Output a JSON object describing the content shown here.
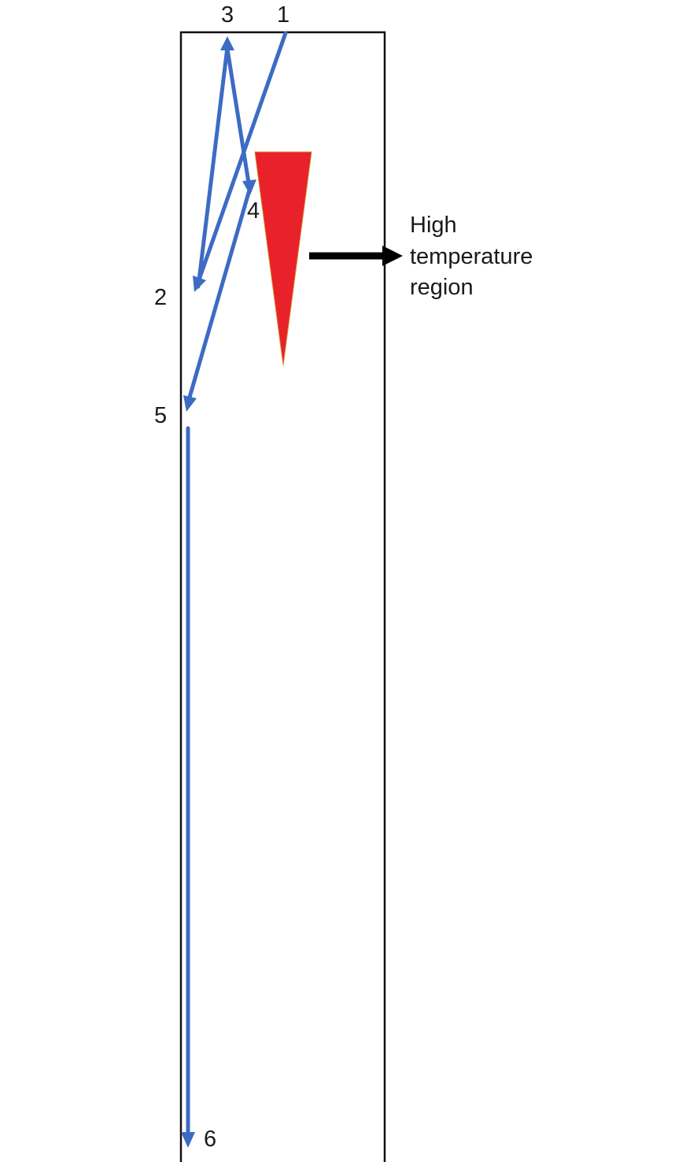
{
  "diagram": {
    "point_labels": {
      "p1": "1",
      "p2": "2",
      "p3": "3",
      "p4": "4",
      "p5": "5",
      "p6": "6"
    },
    "annotation": {
      "line1": "High",
      "line2": "temperature",
      "line3": "region"
    },
    "colors": {
      "path": "#3d6bc4",
      "hot_region": "#e8212a",
      "pointer": "#000000",
      "frame": "#111111"
    }
  }
}
